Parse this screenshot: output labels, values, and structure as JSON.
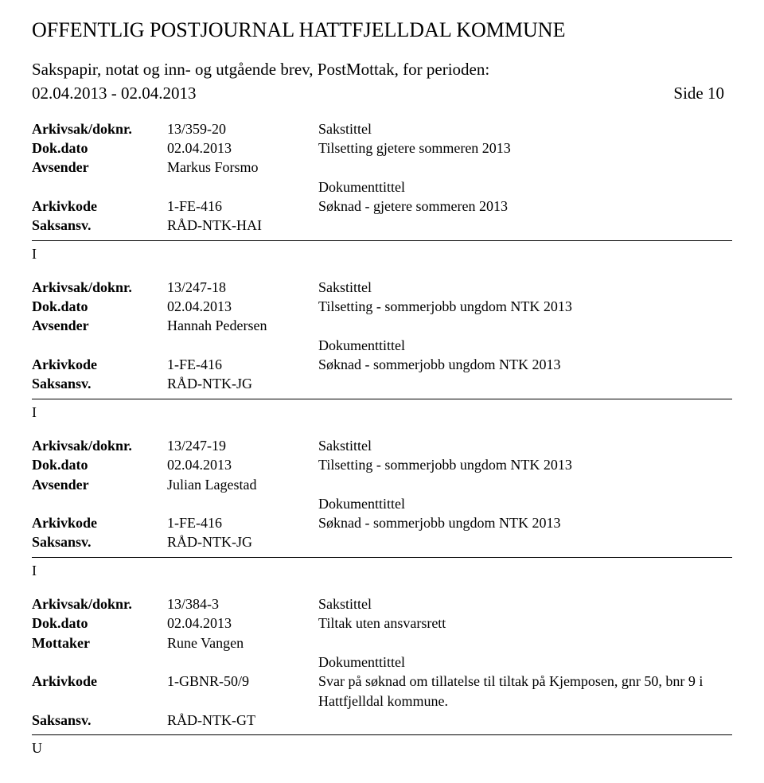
{
  "title": "OFFENTLIG POSTJOURNAL HATTFJELLDAL KOMMUNE",
  "subtitle": "Sakspapir, notat og inn- og utgående brev, PostMottak, for perioden:",
  "period": "02.04.2013 - 02.04.2013",
  "pageLabel": "Side 10",
  "labels": {
    "arkivsak": "Arkivsak/doknr.",
    "dokdato": "Dok.dato",
    "avsender": "Avsender",
    "mottaker": "Mottaker",
    "arkivkode": "Arkivkode",
    "saksansv": "Saksansv.",
    "sakstittel": "Sakstittel",
    "dokumenttittel": "Dokumenttittel"
  },
  "records": [
    {
      "arkivsak": "13/359-20",
      "dokdato": "02.04.2013",
      "personLabel": "Avsender",
      "person": "Markus Forsmo",
      "sakstittel": "Tilsetting gjetere sommeren 2013",
      "arkivkode": "1-FE-416",
      "doktittel": "Søknad - gjetere sommeren 2013",
      "saksansv": "RÅD-NTK-HAI",
      "type": "I"
    },
    {
      "arkivsak": "13/247-18",
      "dokdato": "02.04.2013",
      "personLabel": "Avsender",
      "person": "Hannah Pedersen",
      "sakstittel": "Tilsetting - sommerjobb ungdom NTK 2013",
      "arkivkode": "1-FE-416",
      "doktittel": "Søknad - sommerjobb ungdom NTK 2013",
      "saksansv": "RÅD-NTK-JG",
      "type": "I"
    },
    {
      "arkivsak": "13/247-19",
      "dokdato": "02.04.2013",
      "personLabel": "Avsender",
      "person": "Julian Lagestad",
      "sakstittel": "Tilsetting - sommerjobb ungdom NTK 2013",
      "arkivkode": "1-FE-416",
      "doktittel": "Søknad - sommerjobb ungdom NTK 2013",
      "saksansv": "RÅD-NTK-JG",
      "type": "I"
    },
    {
      "arkivsak": "13/384-3",
      "dokdato": "02.04.2013",
      "personLabel": "Mottaker",
      "person": "Rune Vangen",
      "sakstittel": "Tiltak uten ansvarsrett",
      "arkivkode": "1-GBNR-50/9",
      "doktittel": "Svar på søknad om tillatelse til tiltak på Kjemposen, gnr 50, bnr 9 i Hattfjelldal kommune.",
      "saksansv": "RÅD-NTK-GT",
      "type": "U"
    }
  ]
}
